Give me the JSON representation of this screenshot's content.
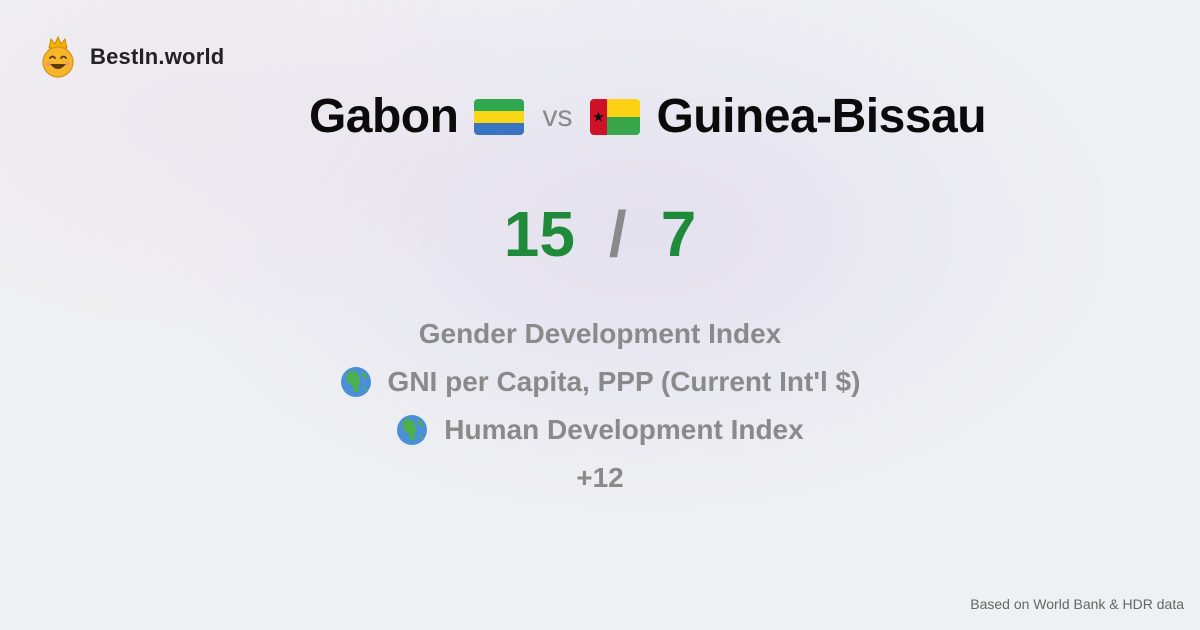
{
  "brand": {
    "name": "BestIn.world",
    "logo_icon": "crowned-smiley-icon"
  },
  "comparison": {
    "left_country": "Gabon",
    "left_flag_icon": "gabon-flag-icon",
    "vs_label": "vs",
    "right_country": "Guinea-Bissau",
    "right_flag_icon": "guinea-bissau-flag-icon"
  },
  "score": {
    "left": "15",
    "separator": "/",
    "right": "7",
    "score_color": "#1e8a3a"
  },
  "metrics": [
    {
      "label": "Gender Development Index",
      "icon": ""
    },
    {
      "label": "GNI per Capita, PPP (Current Int'l $)",
      "icon": "globe-africa-icon"
    },
    {
      "label": "Human Development Index",
      "icon": "globe-africa-icon"
    }
  ],
  "more_label": "+12",
  "footer": {
    "source": "Based on World Bank & HDR data"
  }
}
